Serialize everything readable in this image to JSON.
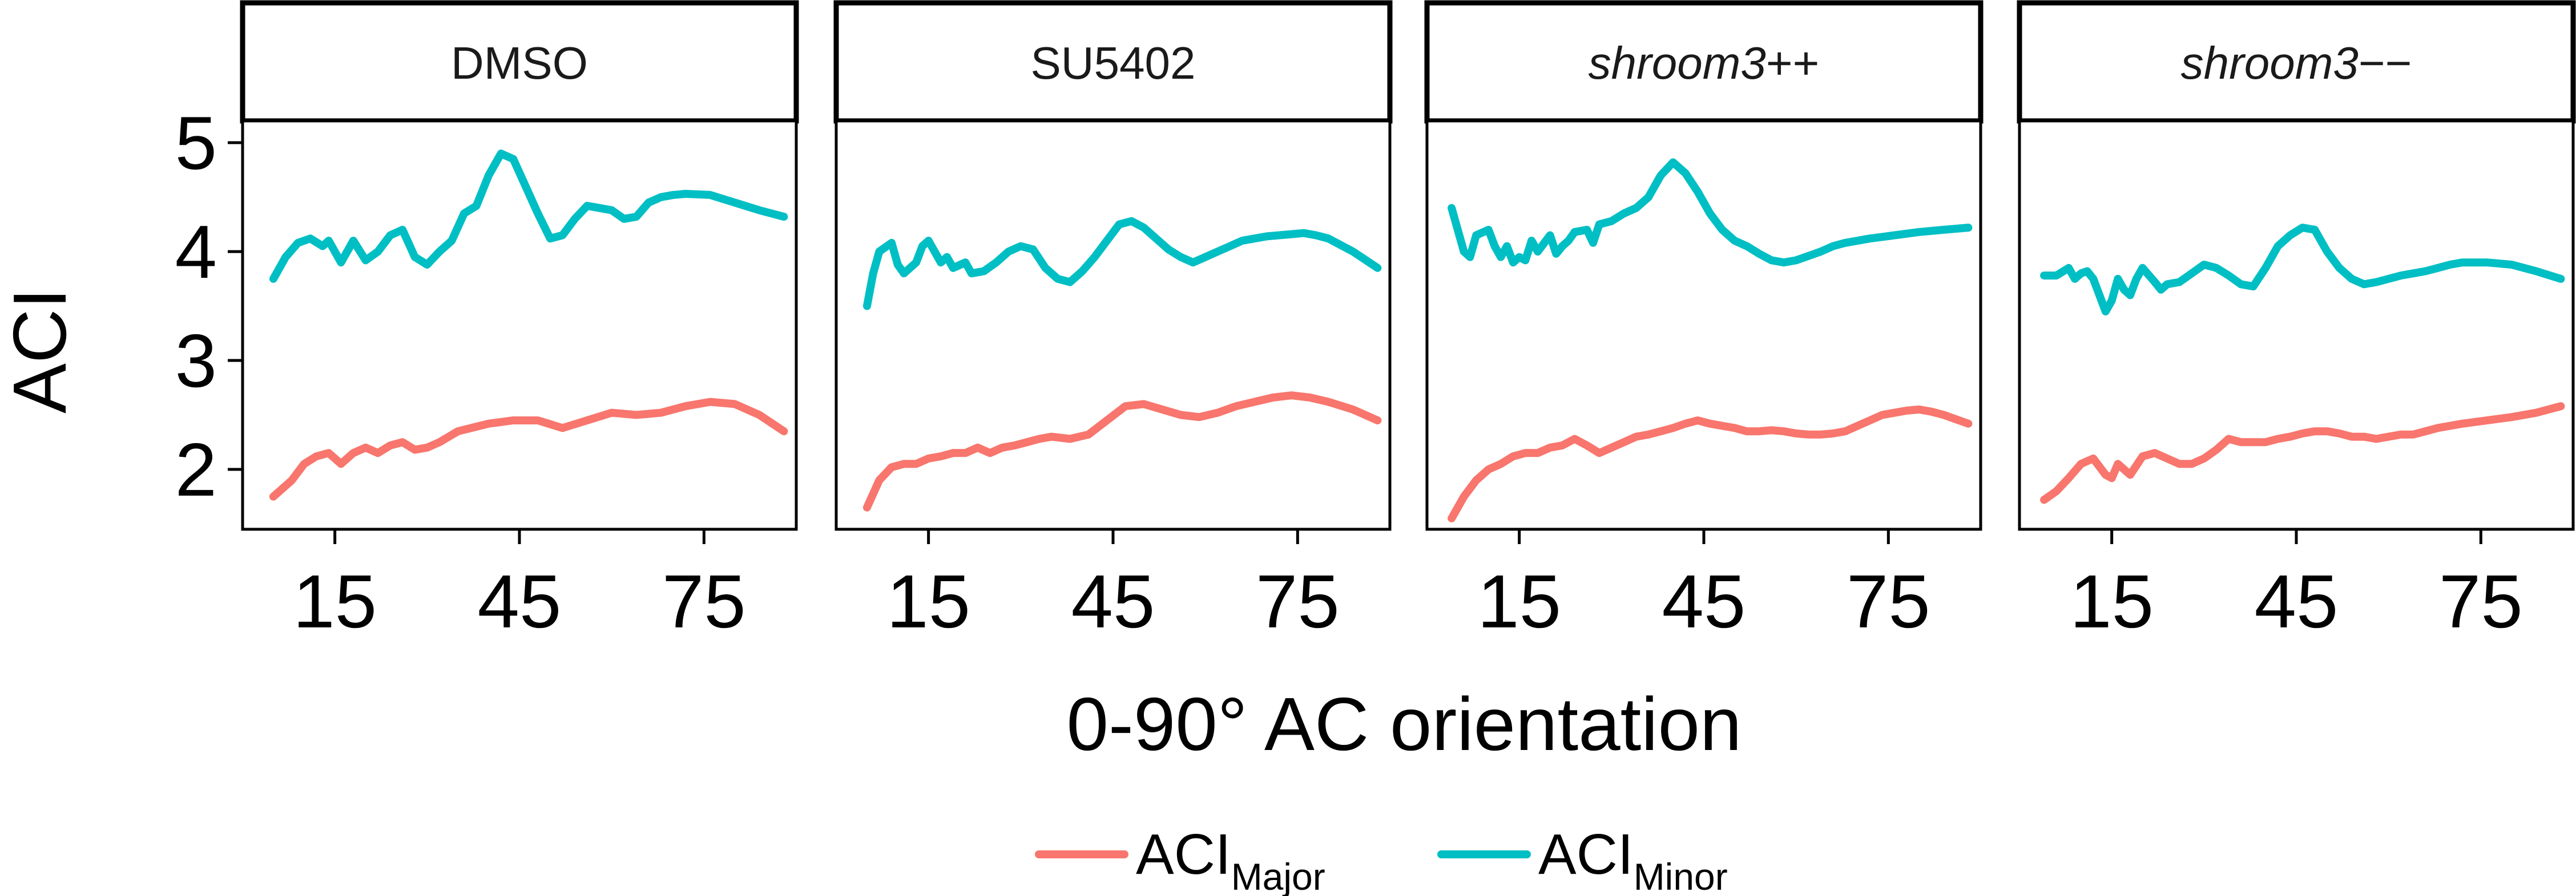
{
  "chart_data": {
    "type": "line",
    "ylabel": "ACI",
    "xlabel": "0-90° AC orientation",
    "xlim": [
      0,
      90
    ],
    "ylim": [
      1.45,
      5.2
    ],
    "x_ticks": [
      15,
      45,
      75
    ],
    "y_ticks": [
      2,
      3,
      4,
      5
    ],
    "x_tick_labels": [
      "15",
      "45",
      "75"
    ],
    "y_tick_labels": [
      "2",
      "3",
      "4",
      "5"
    ],
    "grid": false,
    "legend_position": "bottom",
    "legend": [
      {
        "base": "ACI",
        "sub": "Major",
        "color": "#F8766D"
      },
      {
        "base": "ACI",
        "sub": "Minor",
        "color": "#00BFC4"
      }
    ],
    "facets": [
      {
        "label_main": "DMSO",
        "label_suffix": "",
        "italic": false,
        "series": [
          {
            "key": "major",
            "color": "#F8766D",
            "x": [
              5,
              8,
              10,
              12,
              14,
              16,
              18,
              20,
              22,
              24,
              26,
              28,
              30,
              32,
              35,
              40,
              44,
              48,
              52,
              56,
              60,
              64,
              68,
              72,
              76,
              80,
              84,
              88
            ],
            "y": [
              1.75,
              1.9,
              2.05,
              2.12,
              2.15,
              2.05,
              2.15,
              2.2,
              2.15,
              2.22,
              2.25,
              2.18,
              2.2,
              2.25,
              2.35,
              2.42,
              2.45,
              2.45,
              2.38,
              2.45,
              2.52,
              2.5,
              2.52,
              2.58,
              2.62,
              2.6,
              2.5,
              2.35
            ]
          },
          {
            "key": "minor",
            "color": "#00BFC4",
            "x": [
              5,
              7,
              9,
              11,
              13,
              14,
              16,
              18,
              20,
              22,
              24,
              26,
              28,
              30,
              32,
              34,
              36,
              38,
              40,
              42,
              44,
              46,
              48,
              50,
              52,
              54,
              56,
              58,
              60,
              62,
              64,
              66,
              68,
              70,
              72,
              76,
              80,
              84,
              88
            ],
            "y": [
              3.75,
              3.95,
              4.08,
              4.12,
              4.05,
              4.1,
              3.9,
              4.1,
              3.92,
              4.0,
              4.15,
              4.2,
              3.95,
              3.88,
              4.0,
              4.1,
              4.35,
              4.42,
              4.7,
              4.9,
              4.85,
              4.6,
              4.35,
              4.12,
              4.15,
              4.3,
              4.42,
              4.4,
              4.38,
              4.3,
              4.32,
              4.45,
              4.5,
              4.52,
              4.53,
              4.52,
              4.45,
              4.38,
              4.32
            ]
          }
        ]
      },
      {
        "label_main": "SU5402",
        "label_suffix": "",
        "italic": false,
        "series": [
          {
            "key": "major",
            "color": "#F8766D",
            "x": [
              5,
              7,
              9,
              11,
              13,
              15,
              17,
              19,
              21,
              23,
              25,
              27,
              29,
              31,
              33,
              35,
              38,
              41,
              44,
              47,
              50,
              53,
              56,
              59,
              62,
              65,
              68,
              71,
              74,
              77,
              80,
              84,
              88
            ],
            "y": [
              1.65,
              1.9,
              2.02,
              2.05,
              2.05,
              2.1,
              2.12,
              2.15,
              2.15,
              2.2,
              2.15,
              2.2,
              2.22,
              2.25,
              2.28,
              2.3,
              2.28,
              2.32,
              2.45,
              2.58,
              2.6,
              2.55,
              2.5,
              2.48,
              2.52,
              2.58,
              2.62,
              2.66,
              2.68,
              2.66,
              2.62,
              2.55,
              2.45
            ]
          },
          {
            "key": "minor",
            "color": "#00BFC4",
            "x": [
              5,
              6,
              7,
              9,
              10,
              11,
              13,
              14,
              15,
              17,
              18,
              19,
              21,
              22,
              24,
              26,
              28,
              30,
              32,
              34,
              36,
              38,
              40,
              42,
              44,
              46,
              48,
              50,
              52,
              54,
              56,
              58,
              60,
              62,
              64,
              66,
              68,
              70,
              72,
              74,
              76,
              78,
              80,
              84,
              88
            ],
            "y": [
              3.5,
              3.8,
              4.0,
              4.08,
              3.88,
              3.8,
              3.9,
              4.05,
              4.1,
              3.9,
              3.95,
              3.85,
              3.9,
              3.8,
              3.82,
              3.9,
              4.0,
              4.05,
              4.02,
              3.85,
              3.75,
              3.72,
              3.82,
              3.95,
              4.1,
              4.25,
              4.28,
              4.22,
              4.12,
              4.02,
              3.95,
              3.9,
              3.95,
              4.0,
              4.05,
              4.1,
              4.12,
              4.14,
              4.15,
              4.16,
              4.17,
              4.15,
              4.12,
              4.0,
              3.85
            ]
          }
        ]
      },
      {
        "label_main": "shroom3",
        "label_suffix": "++",
        "italic": true,
        "series": [
          {
            "key": "major",
            "color": "#F8766D",
            "x": [
              4,
              6,
              8,
              10,
              12,
              14,
              16,
              18,
              20,
              22,
              24,
              26,
              28,
              30,
              32,
              34,
              36,
              38,
              40,
              42,
              44,
              46,
              48,
              50,
              52,
              54,
              56,
              58,
              60,
              62,
              64,
              66,
              68,
              70,
              72,
              74,
              76,
              78,
              80,
              82,
              84,
              88
            ],
            "y": [
              1.55,
              1.75,
              1.9,
              2.0,
              2.05,
              2.12,
              2.15,
              2.15,
              2.2,
              2.22,
              2.28,
              2.22,
              2.15,
              2.2,
              2.25,
              2.3,
              2.32,
              2.35,
              2.38,
              2.42,
              2.45,
              2.42,
              2.4,
              2.38,
              2.35,
              2.35,
              2.36,
              2.35,
              2.33,
              2.32,
              2.32,
              2.33,
              2.35,
              2.4,
              2.45,
              2.5,
              2.52,
              2.54,
              2.55,
              2.53,
              2.5,
              2.42
            ]
          },
          {
            "key": "minor",
            "color": "#00BFC4",
            "x": [
              4,
              5,
              6,
              7,
              8,
              10,
              11,
              12,
              13,
              14,
              15,
              16,
              17,
              18,
              20,
              21,
              22,
              23,
              24,
              26,
              27,
              28,
              30,
              32,
              34,
              36,
              38,
              40,
              42,
              44,
              46,
              48,
              50,
              52,
              54,
              56,
              58,
              60,
              62,
              64,
              66,
              68,
              72,
              76,
              80,
              84,
              88
            ],
            "y": [
              4.4,
              4.2,
              4.0,
              3.95,
              4.15,
              4.2,
              4.05,
              3.95,
              4.05,
              3.9,
              3.95,
              3.92,
              4.1,
              4.0,
              4.15,
              3.98,
              4.05,
              4.1,
              4.18,
              4.2,
              4.08,
              4.25,
              4.28,
              4.35,
              4.4,
              4.5,
              4.7,
              4.82,
              4.72,
              4.55,
              4.35,
              4.2,
              4.1,
              4.05,
              3.98,
              3.92,
              3.9,
              3.92,
              3.96,
              4.0,
              4.05,
              4.08,
              4.12,
              4.15,
              4.18,
              4.2,
              4.22
            ]
          }
        ]
      },
      {
        "label_main": "shroom3",
        "label_suffix": "−−",
        "italic": true,
        "series": [
          {
            "key": "major",
            "color": "#F8766D",
            "x": [
              4,
              6,
              8,
              10,
              12,
              14,
              15,
              16,
              17,
              18,
              20,
              22,
              24,
              26,
              28,
              30,
              32,
              34,
              36,
              38,
              40,
              42,
              44,
              46,
              48,
              50,
              52,
              54,
              56,
              58,
              60,
              62,
              64,
              66,
              68,
              72,
              76,
              80,
              84,
              88
            ],
            "y": [
              1.72,
              1.8,
              1.92,
              2.05,
              2.1,
              1.95,
              1.92,
              2.05,
              2.0,
              1.95,
              2.12,
              2.15,
              2.1,
              2.05,
              2.05,
              2.1,
              2.18,
              2.28,
              2.25,
              2.25,
              2.25,
              2.28,
              2.3,
              2.33,
              2.35,
              2.35,
              2.33,
              2.3,
              2.3,
              2.28,
              2.3,
              2.32,
              2.32,
              2.35,
              2.38,
              2.42,
              2.45,
              2.48,
              2.52,
              2.58
            ]
          },
          {
            "key": "minor",
            "color": "#00BFC4",
            "x": [
              4,
              6,
              8,
              9,
              10,
              11,
              12,
              13,
              14,
              15,
              16,
              17,
              18,
              19,
              20,
              22,
              23,
              24,
              26,
              28,
              30,
              32,
              34,
              36,
              38,
              40,
              42,
              44,
              46,
              48,
              50,
              52,
              54,
              56,
              58,
              60,
              62,
              64,
              66,
              68,
              70,
              72,
              76,
              80,
              84,
              88
            ],
            "y": [
              3.78,
              3.78,
              3.85,
              3.75,
              3.8,
              3.82,
              3.75,
              3.6,
              3.45,
              3.55,
              3.75,
              3.65,
              3.6,
              3.75,
              3.85,
              3.72,
              3.65,
              3.7,
              3.72,
              3.8,
              3.88,
              3.85,
              3.78,
              3.7,
              3.68,
              3.85,
              4.05,
              4.15,
              4.22,
              4.2,
              4.0,
              3.85,
              3.75,
              3.7,
              3.72,
              3.75,
              3.78,
              3.8,
              3.82,
              3.85,
              3.88,
              3.9,
              3.9,
              3.88,
              3.82,
              3.75
            ]
          }
        ]
      }
    ]
  }
}
